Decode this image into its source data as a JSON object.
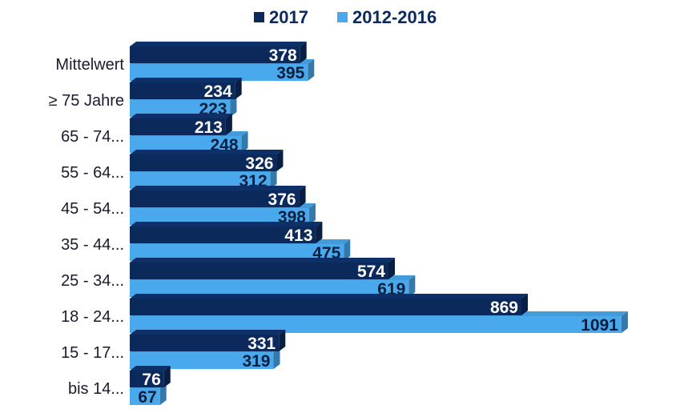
{
  "chart_data": {
    "type": "bar",
    "orientation": "horizontal",
    "style": "3d",
    "categories": [
      "Mittelwert",
      "≥ 75 Jahre",
      "65 - 74...",
      "55 - 64...",
      "45 - 54...",
      "35 - 44...",
      "25 - 34...",
      "18 - 24...",
      "15 - 17...",
      "bis 14..."
    ],
    "series": [
      {
        "name": "2017",
        "color": "#0b2a5b",
        "values": [
          378,
          234,
          213,
          326,
          376,
          413,
          574,
          869,
          331,
          76
        ]
      },
      {
        "name": "2012-2016",
        "color": "#4aa8ec",
        "values": [
          395,
          223,
          248,
          312,
          398,
          475,
          619,
          1091,
          319,
          67
        ]
      }
    ],
    "xlim": [
      0,
      1100
    ],
    "grid": false,
    "legend_position": "top-center",
    "data_labels": true
  }
}
